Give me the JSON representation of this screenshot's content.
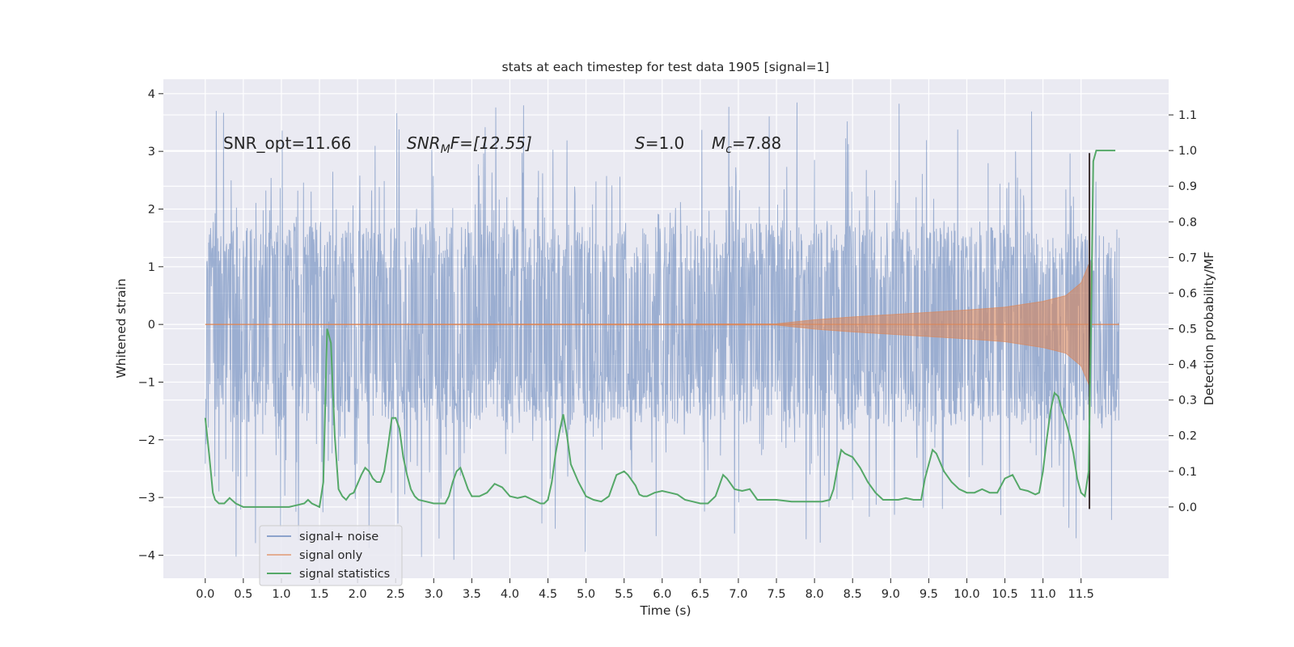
{
  "chart_data": {
    "type": "line",
    "title": "stats at each timestep for test data 1905 [signal=1]",
    "xlabel": "Time (s)",
    "ylabel": "Whitened strain",
    "ylabel_right": "Detection probability/MF",
    "xlim": [
      -0.55,
      12.65
    ],
    "ylim": [
      -4.4,
      4.25
    ],
    "ylim_right": [
      -0.2,
      1.2
    ],
    "xticks": [
      0.0,
      0.5,
      1.0,
      1.5,
      2.0,
      2.5,
      3.0,
      3.5,
      4.0,
      4.5,
      5.0,
      5.5,
      6.0,
      6.5,
      7.0,
      7.5,
      8.0,
      8.5,
      9.0,
      9.5,
      10.0,
      10.5,
      11.0,
      11.5
    ],
    "xtick_labels": [
      "0.0",
      "0.5",
      "1.0",
      "1.5",
      "2.0",
      "2.5",
      "3.0",
      "3.5",
      "4.0",
      "4.5",
      "5.0",
      "5.5",
      "6.0",
      "6.5",
      "7.0",
      "7.5",
      "8.0",
      "8.5",
      "9.0",
      "9.5",
      "10.0",
      "10.5",
      "11.0",
      "11.5"
    ],
    "yticks": [
      -4,
      -3,
      -2,
      -1,
      0,
      1,
      2,
      3,
      4
    ],
    "ytick_labels": [
      "−4",
      "−3",
      "−2",
      "−1",
      "0",
      "1",
      "2",
      "3",
      "4"
    ],
    "yticks_right": [
      0.0,
      0.1,
      0.2,
      0.3,
      0.4,
      0.5,
      0.6,
      0.7,
      0.8,
      0.9,
      1.0,
      1.1
    ],
    "ytick_right_labels": [
      "0.0",
      "0.1",
      "0.2",
      "0.3",
      "0.4",
      "0.5",
      "0.6",
      "0.7",
      "0.8",
      "0.9",
      "1.0",
      "1.1"
    ],
    "grid": true,
    "legend_position": "lower-left",
    "annotations": {
      "snr_opt": "SNR_opt=11.66",
      "snr_mf_base": "SNR",
      "snr_mf_sub": "M",
      "snr_mf_rest": "F=[12.55]",
      "s_italic": "S",
      "s_rest": "=1.0",
      "mc_base": "M",
      "mc_sub": "c",
      "mc_rest": "=7.88"
    },
    "series": [
      {
        "name": "signal+ noise",
        "color": "#4c72b0",
        "axis": "left",
        "kind": "noise-band",
        "x_range": [
          0.0,
          12.0
        ],
        "samples": 2400,
        "typical_range": [
          -1.8,
          1.8
        ],
        "extreme_range": [
          -4.1,
          3.85
        ]
      },
      {
        "name": "signal only",
        "color": "#dd8452",
        "axis": "left",
        "kind": "chirp-envelope",
        "x": [
          0.0,
          7.5,
          8.0,
          8.5,
          9.0,
          9.5,
          10.0,
          10.5,
          11.0,
          11.3,
          11.5,
          11.62,
          11.63,
          12.0
        ],
        "amplitude": [
          0.0,
          0.01,
          0.08,
          0.13,
          0.17,
          0.21,
          0.25,
          0.3,
          0.4,
          0.5,
          0.72,
          1.1,
          0.0,
          0.0
        ]
      },
      {
        "name": "signal statistics",
        "color": "#55a868",
        "axis": "right",
        "x": [
          0.0,
          0.05,
          0.1,
          0.13,
          0.18,
          0.25,
          0.32,
          0.4,
          0.5,
          0.6,
          0.8,
          0.9,
          1.0,
          1.1,
          1.2,
          1.3,
          1.35,
          1.4,
          1.45,
          1.5,
          1.55,
          1.6,
          1.65,
          1.7,
          1.75,
          1.8,
          1.85,
          1.9,
          1.95,
          2.05,
          2.1,
          2.15,
          2.2,
          2.25,
          2.3,
          2.35,
          2.4,
          2.45,
          2.5,
          2.55,
          2.6,
          2.65,
          2.7,
          2.75,
          2.8,
          2.9,
          3.0,
          3.15,
          3.2,
          3.25,
          3.3,
          3.35,
          3.4,
          3.45,
          3.5,
          3.55,
          3.6,
          3.7,
          3.8,
          3.9,
          4.0,
          4.1,
          4.2,
          4.3,
          4.4,
          4.45,
          4.5,
          4.55,
          4.6,
          4.65,
          4.7,
          4.75,
          4.8,
          4.9,
          5.0,
          5.1,
          5.2,
          5.3,
          5.4,
          5.5,
          5.55,
          5.65,
          5.7,
          5.75,
          5.8,
          5.9,
          6.0,
          6.1,
          6.2,
          6.3,
          6.4,
          6.5,
          6.6,
          6.7,
          6.75,
          6.8,
          6.85,
          6.9,
          6.95,
          7.05,
          7.15,
          7.25,
          7.35,
          7.5,
          7.7,
          7.8,
          7.9,
          8.0,
          8.1,
          8.2,
          8.25,
          8.3,
          8.35,
          8.4,
          8.5,
          8.6,
          8.7,
          8.8,
          8.9,
          9.0,
          9.1,
          9.2,
          9.3,
          9.4,
          9.45,
          9.5,
          9.55,
          9.6,
          9.7,
          9.8,
          9.9,
          10.0,
          10.1,
          10.2,
          10.3,
          10.4,
          10.5,
          10.6,
          10.7,
          10.8,
          10.9,
          10.95,
          11.0,
          11.05,
          11.1,
          11.15,
          11.2,
          11.25,
          11.3,
          11.35,
          11.4,
          11.45,
          11.5,
          11.55,
          11.6,
          11.63,
          11.66,
          11.7,
          11.75,
          11.8,
          11.85,
          11.9,
          11.95
        ],
        "values": [
          0.25,
          0.15,
          0.04,
          0.02,
          0.01,
          0.01,
          0.025,
          0.01,
          0.0,
          0.0,
          0.0,
          0.0,
          0.0,
          0.0,
          0.005,
          0.01,
          0.02,
          0.01,
          0.005,
          0.0,
          0.07,
          0.5,
          0.46,
          0.2,
          0.05,
          0.03,
          0.02,
          0.035,
          0.04,
          0.09,
          0.11,
          0.1,
          0.08,
          0.07,
          0.07,
          0.1,
          0.17,
          0.25,
          0.25,
          0.22,
          0.14,
          0.09,
          0.05,
          0.03,
          0.02,
          0.015,
          0.01,
          0.01,
          0.03,
          0.07,
          0.1,
          0.11,
          0.08,
          0.05,
          0.03,
          0.03,
          0.03,
          0.04,
          0.065,
          0.055,
          0.03,
          0.025,
          0.03,
          0.02,
          0.01,
          0.01,
          0.02,
          0.07,
          0.15,
          0.21,
          0.26,
          0.2,
          0.12,
          0.07,
          0.03,
          0.02,
          0.015,
          0.03,
          0.09,
          0.1,
          0.09,
          0.06,
          0.035,
          0.03,
          0.03,
          0.04,
          0.045,
          0.04,
          0.035,
          0.02,
          0.015,
          0.01,
          0.01,
          0.03,
          0.06,
          0.09,
          0.08,
          0.065,
          0.05,
          0.045,
          0.05,
          0.02,
          0.02,
          0.02,
          0.015,
          0.015,
          0.015,
          0.015,
          0.015,
          0.02,
          0.05,
          0.11,
          0.16,
          0.15,
          0.14,
          0.11,
          0.07,
          0.04,
          0.02,
          0.02,
          0.02,
          0.025,
          0.02,
          0.02,
          0.08,
          0.12,
          0.16,
          0.15,
          0.1,
          0.07,
          0.05,
          0.04,
          0.04,
          0.05,
          0.04,
          0.04,
          0.08,
          0.09,
          0.05,
          0.045,
          0.035,
          0.04,
          0.1,
          0.19,
          0.27,
          0.32,
          0.31,
          0.27,
          0.24,
          0.2,
          0.15,
          0.08,
          0.04,
          0.03,
          0.1,
          0.5,
          0.97,
          1.0,
          1.0,
          1.0,
          1.0,
          1.0,
          1.0
        ]
      }
    ],
    "vertical_line": {
      "x": 11.61,
      "color": "#3b2f2f",
      "y_range": [
        -3.2,
        2.97
      ]
    }
  }
}
